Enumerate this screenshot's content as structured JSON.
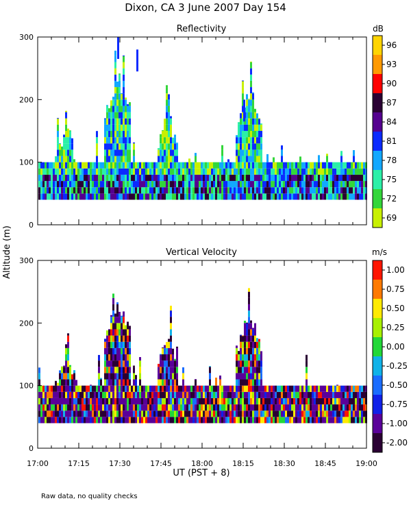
{
  "figure": {
    "title": "Dixon, CA   3 June 2007   Day 154",
    "ylabel": "Altitude (m)",
    "xlabel": "UT  (PST + 8)",
    "footnote": "Raw data, no quality checks"
  },
  "chart_data": [
    {
      "type": "heatmap",
      "title": "Reflectivity",
      "colorbar_unit": "dB",
      "x_ticks": [
        "17:00",
        "17:15",
        "17:30",
        "17:45",
        "18:00",
        "18:15",
        "18:30",
        "18:45",
        "19:00"
      ],
      "x_range": [
        "17:00",
        "19:00"
      ],
      "ylim": [
        0,
        300
      ],
      "y_ticks": [
        0,
        100,
        200,
        300
      ],
      "colorbar_labels": [
        "96",
        "93",
        "90",
        "87",
        "84",
        "81",
        "78",
        "75",
        "72",
        "69"
      ],
      "colorbar_colors": [
        "#ffd400",
        "#ff9900",
        "#ff0000",
        "#2a0033",
        "#55008f",
        "#0b2aff",
        "#12a8ff",
        "#2bf0a8",
        "#33d63a",
        "#c8f000"
      ],
      "data_altitude_range_m": [
        40,
        100
      ],
      "episodic_echo_tops_m": [
        {
          "time": "17:29",
          "top": 300
        },
        {
          "time": "17:36",
          "top": 280
        },
        {
          "time": "18:15",
          "top": 200
        }
      ]
    },
    {
      "type": "heatmap",
      "title": "Vertical Velocity",
      "colorbar_unit": "m/s",
      "x_ticks": [
        "17:00",
        "17:15",
        "17:30",
        "17:45",
        "18:00",
        "18:15",
        "18:30",
        "18:45",
        "19:00"
      ],
      "x_range": [
        "17:00",
        "19:00"
      ],
      "ylim": [
        0,
        300
      ],
      "y_ticks": [
        0,
        100,
        200,
        300
      ],
      "colorbar_labels": [
        "1.00",
        "0.75",
        "0.50",
        "0.25",
        "0.00",
        "-0.25",
        "-0.50",
        "-0.75",
        "-1.00",
        "-2.00"
      ],
      "colorbar_colors": [
        "#ff1500",
        "#ff7a00",
        "#ffea00",
        "#a8f000",
        "#22d838",
        "#10b2e8",
        "#1a6cff",
        "#1020e8",
        "#5a0099",
        "#2a0033"
      ],
      "data_altitude_range_m": [
        40,
        100
      ]
    }
  ]
}
